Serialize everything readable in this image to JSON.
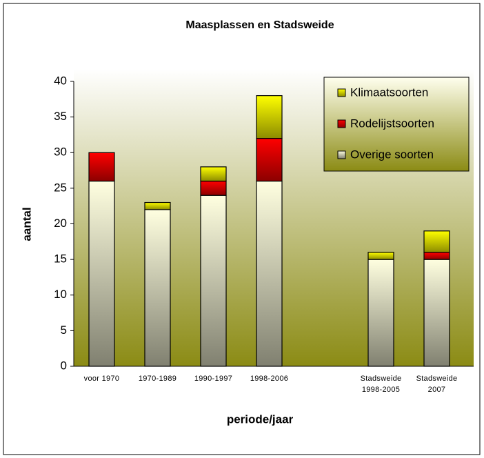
{
  "chart_data": {
    "type": "stacked_bar",
    "title": "Maasplassen en Stadsweide",
    "x_label": "periode/jaar",
    "y_label": "aantal",
    "categories": [
      "voor 1970",
      "1970-1989",
      "1990-1997",
      "1998-2006",
      null,
      "Stadsweide 1998-2005",
      "Stadsweide 2007"
    ],
    "series": [
      {
        "name": "Overige soorten",
        "color": "#ffffe0",
        "values": [
          26,
          22,
          24,
          26,
          null,
          15,
          15
        ]
      },
      {
        "name": "Rodelijstsoorten",
        "color": "#ff0000",
        "values": [
          4,
          0,
          2,
          6,
          null,
          0,
          1
        ]
      },
      {
        "name": "Klimaatsoorten",
        "color": "#ffff00",
        "values": [
          0,
          1,
          2,
          6,
          null,
          1,
          3
        ]
      }
    ],
    "ylim": [
      0,
      40
    ],
    "yticks": [
      0,
      5,
      10,
      15,
      20,
      25,
      30,
      35,
      40
    ],
    "legend": "top-right"
  }
}
